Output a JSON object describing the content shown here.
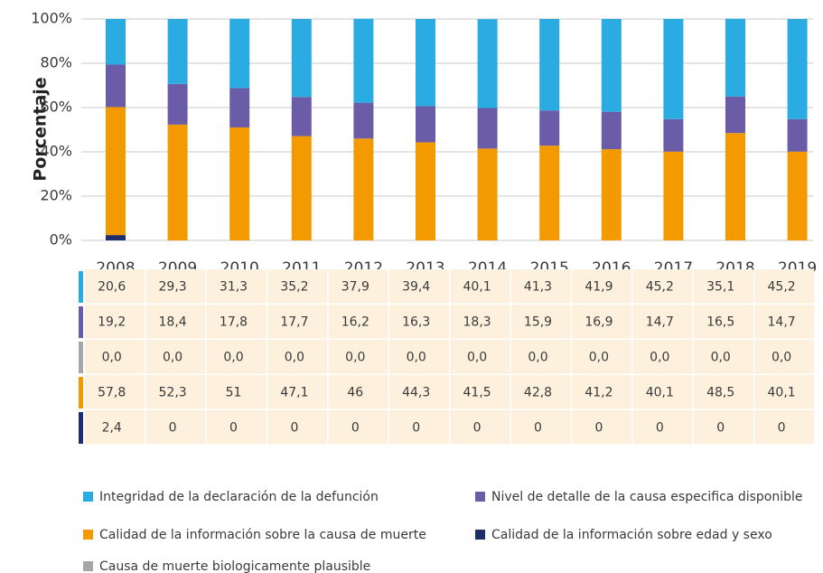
{
  "chart_data": {
    "type": "stacked_bar",
    "y_label": "Porcentaje",
    "categories": [
      "2008",
      "2009",
      "2010",
      "2011",
      "2012",
      "2013",
      "2014",
      "2015",
      "2016",
      "2017",
      "2018",
      "2019"
    ],
    "series": [
      {
        "name": "Integridad de la declaración de la defunción",
        "color": "#2aace2",
        "values": [
          20.6,
          29.3,
          31.3,
          35.2,
          37.9,
          39.4,
          40.1,
          41.3,
          41.9,
          45.2,
          35.1,
          45.2
        ],
        "value_labels": [
          "20,6",
          "29,3",
          "31,3",
          "35,2",
          "37,9",
          "39,4",
          "40,1",
          "41,3",
          "41,9",
          "45,2",
          "35,1",
          "45,2"
        ]
      },
      {
        "name": "Nivel de detalle de la causa especifica disponible",
        "color": "#6b5ca8",
        "values": [
          19.2,
          18.4,
          17.8,
          17.7,
          16.2,
          16.3,
          18.3,
          15.9,
          16.9,
          14.7,
          16.5,
          14.7
        ],
        "value_labels": [
          "19,2",
          "18,4",
          "17,8",
          "17,7",
          "16,2",
          "16,3",
          "18,3",
          "15,9",
          "16,9",
          "14,7",
          "16,5",
          "14,7"
        ]
      },
      {
        "name": "Causa de muerte biologicamente plausible",
        "color": "#a6a6a6",
        "values": [
          0,
          0,
          0,
          0,
          0,
          0,
          0,
          0,
          0,
          0,
          0,
          0
        ],
        "value_labels": [
          "0,0",
          "0,0",
          "0,0",
          "0,0",
          "0,0",
          "0,0",
          "0,0",
          "0,0",
          "0,0",
          "0,0",
          "0,0",
          "0,0"
        ]
      },
      {
        "name": "Calidad de la información sobre la causa de muerte",
        "color": "#f39a00",
        "values": [
          57.8,
          52.3,
          51,
          47.1,
          46,
          44.3,
          41.5,
          42.8,
          41.2,
          40.1,
          48.5,
          40.1
        ],
        "value_labels": [
          "57,8",
          "52,3",
          "51",
          "47,1",
          "46",
          "44,3",
          "41,5",
          "42,8",
          "41,2",
          "40,1",
          "48,5",
          "40,1"
        ]
      },
      {
        "name": "Calidad de la información sobre edad y sexo",
        "color": "#1f2d6b",
        "values": [
          2.4,
          0,
          0,
          0,
          0,
          0,
          0,
          0,
          0,
          0,
          0,
          0
        ],
        "value_labels": [
          "2,4",
          "0",
          "0",
          "0",
          "0",
          "0",
          "0",
          "0",
          "0",
          "0",
          "0",
          "0"
        ]
      }
    ],
    "ylim": [
      0,
      100
    ],
    "yticks": [
      {
        "value": 0,
        "label": "0%"
      },
      {
        "value": 20,
        "label": "20%"
      },
      {
        "value": 40,
        "label": "40%"
      },
      {
        "value": 60,
        "label": "60%"
      },
      {
        "value": 80,
        "label": "80%"
      },
      {
        "value": 100,
        "label": "100%"
      }
    ],
    "grid": true
  }
}
